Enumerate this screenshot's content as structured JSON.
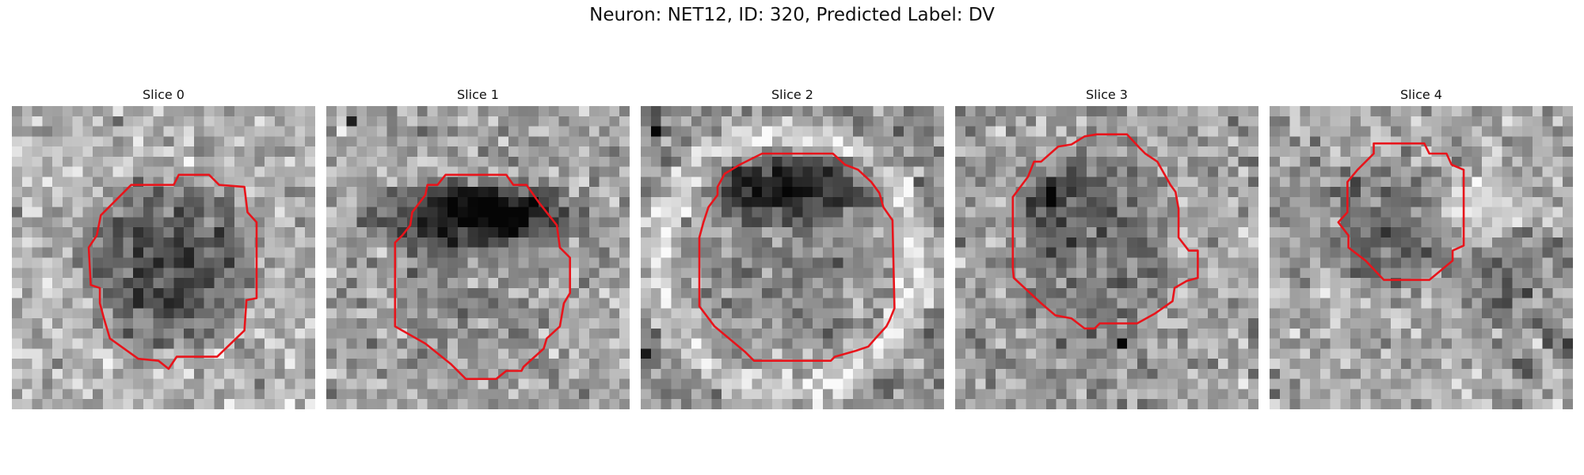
{
  "figure": {
    "title": "Neuron: NET12, ID: 320, Predicted Label: DV"
  },
  "panels": [
    {
      "title": "Slice 0"
    },
    {
      "title": "Slice 1"
    },
    {
      "title": "Slice 2"
    },
    {
      "title": "Slice 3"
    },
    {
      "title": "Slice 4"
    }
  ],
  "colors": {
    "contour": "#e8141b",
    "background": "#ffffff"
  }
}
